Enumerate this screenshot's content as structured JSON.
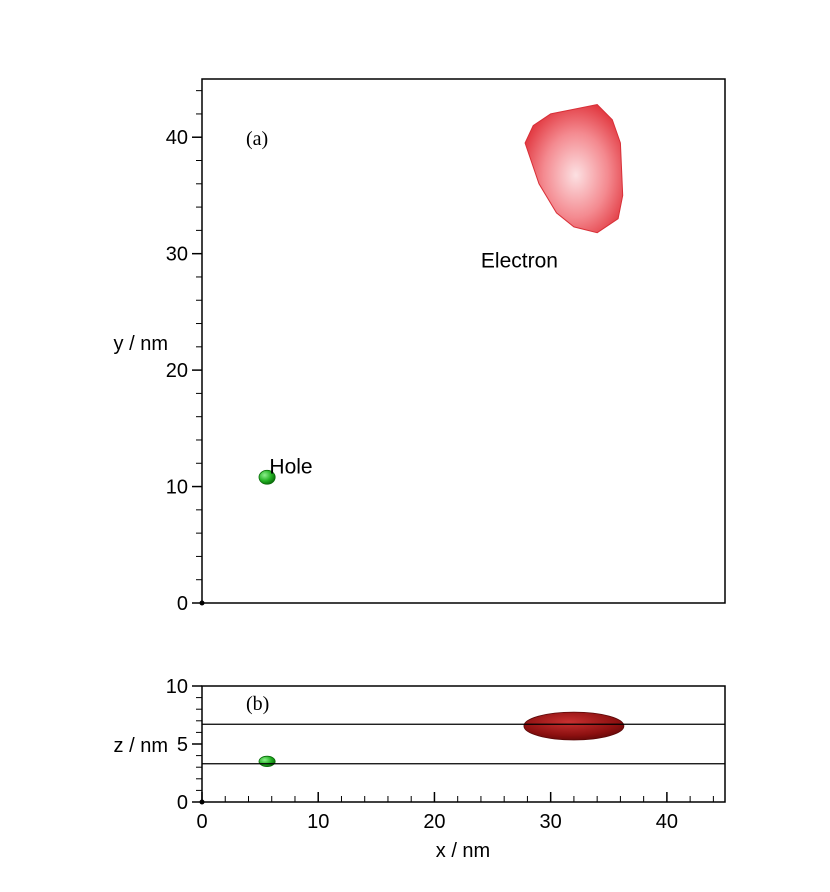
{
  "chart_data": [
    {
      "type": "scatter",
      "panel_label": "(a)",
      "xlabel": "",
      "ylabel": "y / nm",
      "xlim": [
        0,
        45
      ],
      "ylim": [
        0,
        45
      ],
      "y_ticks": [
        "0",
        "10",
        "20",
        "30",
        "40"
      ],
      "grid": false,
      "series": [
        {
          "name": "Electron",
          "color": "#ee4444",
          "shape": "isosurface",
          "outline": [
            [
              27.8,
              39.5
            ],
            [
              28.5,
              41
            ],
            [
              30,
              42
            ],
            [
              32,
              42.4
            ],
            [
              34,
              42.8
            ],
            [
              35.3,
              41.5
            ],
            [
              36,
              39.5
            ],
            [
              36.2,
              35
            ],
            [
              35.8,
              33
            ],
            [
              34,
              31.8
            ],
            [
              32,
              32.3
            ],
            [
              30.5,
              33.5
            ],
            [
              29,
              36
            ]
          ]
        },
        {
          "name": "Hole",
          "color": "#22aa22",
          "shape": "isosurface",
          "center": [
            5.6,
            10.8
          ],
          "radius": [
            0.7,
            0.6
          ]
        }
      ],
      "annotations": [
        {
          "text": "Electron",
          "x": 24,
          "y": 29.5
        },
        {
          "text": "Hole",
          "x": 5.8,
          "y": 11.8
        }
      ]
    },
    {
      "type": "scatter",
      "panel_label": "(b)",
      "xlabel": "x / nm",
      "ylabel": "z / nm",
      "xlim": [
        0,
        45
      ],
      "ylim": [
        0,
        10
      ],
      "x_ticks": [
        "0",
        "10",
        "20",
        "30",
        "40"
      ],
      "y_ticks": [
        "0",
        "5",
        "10"
      ],
      "grid": false,
      "reference_lines_z": [
        3.3,
        6.7
      ],
      "series": [
        {
          "name": "Electron",
          "color": "#a01414",
          "shape": "isosurface",
          "center": [
            32,
            6.55
          ],
          "radius": [
            4.3,
            1.2
          ]
        },
        {
          "name": "Hole",
          "color": "#22aa22",
          "shape": "isosurface",
          "center": [
            5.6,
            3.5
          ],
          "radius": [
            0.7,
            0.45
          ]
        }
      ]
    }
  ]
}
